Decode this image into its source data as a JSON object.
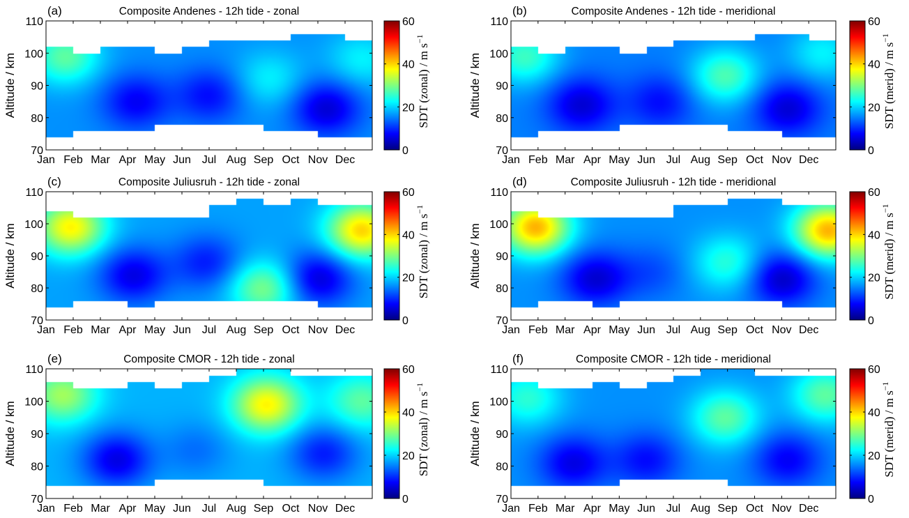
{
  "colorbar_range": [
    0,
    60
  ],
  "colorbar_ticks": [
    "0",
    "20",
    "40",
    "60"
  ],
  "colormap": "jet",
  "chart_data": [
    {
      "type": "heatmap",
      "panel": "(a)",
      "title": "Composite Andenes - 12h tide - zonal",
      "ylabel": "Altitude / km",
      "colorbar_label": "SDT (zonal) / m s",
      "colorbar_unit_exp": "−1",
      "xticks": [
        "Jan",
        "Feb",
        "Mar",
        "Apr",
        "May",
        "Jun",
        "Jul",
        "Aug",
        "Sep",
        "Oct",
        "Nov",
        "Dec"
      ],
      "yticks": [
        "70",
        "80",
        "90",
        "100",
        "110"
      ],
      "ylim": [
        70,
        110
      ],
      "zlim": [
        0,
        60
      ],
      "top_boundary_km": [
        102,
        100,
        102,
        102,
        100,
        102,
        104,
        104,
        104,
        106,
        106,
        104
      ],
      "bottom_boundary_km": [
        74,
        76,
        76,
        76,
        78,
        78,
        78,
        78,
        76,
        76,
        74,
        74
      ],
      "wind_field": {
        "base_ms": 16,
        "features": [
          {
            "month": 0.7,
            "altitude_km": 99,
            "value_ms": 28
          },
          {
            "month": 3.3,
            "altitude_km": 85,
            "value_ms": 7
          },
          {
            "month": 6.0,
            "altitude_km": 87,
            "value_ms": 8
          },
          {
            "month": 8.2,
            "altitude_km": 92,
            "value_ms": 22
          },
          {
            "month": 10.3,
            "altitude_km": 83,
            "value_ms": 5
          },
          {
            "month": 11.6,
            "altitude_km": 98,
            "value_ms": 22
          }
        ]
      }
    },
    {
      "type": "heatmap",
      "panel": "(b)",
      "title": "Composite Andenes - 12h tide - meridional",
      "ylabel": "Altitude / km",
      "colorbar_label": "SDT (merid) / m s",
      "colorbar_unit_exp": "−1",
      "xticks": [
        "Jan",
        "Feb",
        "Mar",
        "Apr",
        "May",
        "Jun",
        "Jul",
        "Aug",
        "Sep",
        "Oct",
        "Nov",
        "Dec"
      ],
      "yticks": [
        "70",
        "80",
        "90",
        "100",
        "110"
      ],
      "ylim": [
        70,
        110
      ],
      "zlim": [
        0,
        60
      ],
      "top_boundary_km": [
        102,
        100,
        102,
        102,
        100,
        102,
        104,
        104,
        104,
        106,
        106,
        104
      ],
      "bottom_boundary_km": [
        74,
        76,
        76,
        76,
        78,
        78,
        78,
        78,
        76,
        76,
        74,
        74
      ],
      "wind_field": {
        "base_ms": 15,
        "features": [
          {
            "month": 0.5,
            "altitude_km": 99,
            "value_ms": 26
          },
          {
            "month": 2.6,
            "altitude_km": 84,
            "value_ms": 5
          },
          {
            "month": 5.5,
            "altitude_km": 85,
            "value_ms": 8
          },
          {
            "month": 7.9,
            "altitude_km": 93,
            "value_ms": 27
          },
          {
            "month": 10.2,
            "altitude_km": 83,
            "value_ms": 5
          },
          {
            "month": 11.5,
            "altitude_km": 100,
            "value_ms": 22
          }
        ]
      }
    },
    {
      "type": "heatmap",
      "panel": "(c)",
      "title": "Composite Juliusruh - 12h tide - zonal",
      "ylabel": "Altitude / km",
      "colorbar_label": "SDT (zonal) / m s",
      "colorbar_unit_exp": "−1",
      "xticks": [
        "Jan",
        "Feb",
        "Mar",
        "Apr",
        "May",
        "Jun",
        "Jul",
        "Aug",
        "Sep",
        "Oct",
        "Nov",
        "Dec"
      ],
      "yticks": [
        "70",
        "80",
        "90",
        "100",
        "110"
      ],
      "ylim": [
        70,
        110
      ],
      "zlim": [
        0,
        60
      ],
      "top_boundary_km": [
        104,
        102,
        102,
        102,
        102,
        102,
        106,
        108,
        106,
        108,
        106,
        106
      ],
      "bottom_boundary_km": [
        74,
        76,
        76,
        74,
        76,
        76,
        76,
        76,
        76,
        76,
        74,
        74
      ],
      "wind_field": {
        "base_ms": 17,
        "features": [
          {
            "month": 0.9,
            "altitude_km": 99,
            "value_ms": 38
          },
          {
            "month": 3.2,
            "altitude_km": 84,
            "value_ms": 6
          },
          {
            "month": 5.9,
            "altitude_km": 88,
            "value_ms": 9
          },
          {
            "month": 8.0,
            "altitude_km": 80,
            "value_ms": 30
          },
          {
            "month": 10.0,
            "altitude_km": 83,
            "value_ms": 5
          },
          {
            "month": 11.6,
            "altitude_km": 98,
            "value_ms": 40
          }
        ]
      }
    },
    {
      "type": "heatmap",
      "panel": "(d)",
      "title": "Composite Juliusruh - 12h tide - meridional",
      "ylabel": "Altitude / km",
      "colorbar_label": "SDT (merid) / m s",
      "colorbar_unit_exp": "−1",
      "xticks": [
        "Jan",
        "Feb",
        "Mar",
        "Apr",
        "May",
        "Jun",
        "Jul",
        "Aug",
        "Sep",
        "Oct",
        "Nov",
        "Dec"
      ],
      "yticks": [
        "70",
        "80",
        "90",
        "100",
        "110"
      ],
      "ylim": [
        70,
        110
      ],
      "zlim": [
        0,
        60
      ],
      "top_boundary_km": [
        104,
        102,
        102,
        102,
        102,
        102,
        106,
        106,
        108,
        108,
        106,
        106
      ],
      "bottom_boundary_km": [
        74,
        76,
        76,
        74,
        76,
        76,
        76,
        76,
        76,
        76,
        74,
        74
      ],
      "wind_field": {
        "base_ms": 16,
        "features": [
          {
            "month": 0.9,
            "altitude_km": 99,
            "value_ms": 42
          },
          {
            "month": 3.1,
            "altitude_km": 83,
            "value_ms": 5
          },
          {
            "month": 5.2,
            "altitude_km": 85,
            "value_ms": 12
          },
          {
            "month": 8.0,
            "altitude_km": 88,
            "value_ms": 25
          },
          {
            "month": 10.0,
            "altitude_km": 83,
            "value_ms": 4
          },
          {
            "month": 11.7,
            "altitude_km": 98,
            "value_ms": 42
          }
        ]
      }
    },
    {
      "type": "heatmap",
      "panel": "(e)",
      "title": "Composite CMOR - 12h tide - zonal",
      "ylabel": "Altitude / km",
      "colorbar_label": "SDT (zonal) / m s",
      "colorbar_unit_exp": "−1",
      "xticks": [
        "Jan",
        "Feb",
        "Mar",
        "Apr",
        "May",
        "Jun",
        "Jul",
        "Aug",
        "Sep",
        "Oct",
        "Nov",
        "Dec"
      ],
      "yticks": [
        "70",
        "80",
        "90",
        "100",
        "110"
      ],
      "ylim": [
        70,
        110
      ],
      "zlim": [
        0,
        60
      ],
      "top_boundary_km": [
        106,
        104,
        104,
        106,
        104,
        106,
        108,
        110,
        110,
        108,
        108,
        108
      ],
      "bottom_boundary_km": [
        74,
        74,
        74,
        74,
        76,
        76,
        76,
        76,
        74,
        74,
        74,
        74
      ],
      "wind_field": {
        "base_ms": 18,
        "features": [
          {
            "month": 0.6,
            "altitude_km": 102,
            "value_ms": 32
          },
          {
            "month": 2.6,
            "altitude_km": 82,
            "value_ms": 6
          },
          {
            "month": 5.5,
            "altitude_km": 85,
            "value_ms": 14
          },
          {
            "month": 8.1,
            "altitude_km": 99,
            "value_ms": 38
          },
          {
            "month": 10.2,
            "altitude_km": 84,
            "value_ms": 9
          },
          {
            "month": 11.6,
            "altitude_km": 100,
            "value_ms": 28
          }
        ]
      }
    },
    {
      "type": "heatmap",
      "panel": "(f)",
      "title": "Composite CMOR - 12h tide - meridional",
      "ylabel": "Altitude / km",
      "colorbar_label": "SDT (merid) / m s",
      "colorbar_unit_exp": "−1",
      "xticks": [
        "Jan",
        "Feb",
        "Mar",
        "Apr",
        "May",
        "Jun",
        "Jul",
        "Aug",
        "Sep",
        "Oct",
        "Nov",
        "Dec"
      ],
      "yticks": [
        "70",
        "80",
        "90",
        "100",
        "110"
      ],
      "ylim": [
        70,
        110
      ],
      "zlim": [
        0,
        60
      ],
      "top_boundary_km": [
        106,
        104,
        104,
        106,
        104,
        106,
        108,
        110,
        110,
        108,
        108,
        108
      ],
      "bottom_boundary_km": [
        74,
        74,
        74,
        74,
        76,
        76,
        76,
        76,
        74,
        74,
        74,
        74
      ],
      "wind_field": {
        "base_ms": 16,
        "features": [
          {
            "month": 0.6,
            "altitude_km": 101,
            "value_ms": 25
          },
          {
            "month": 2.3,
            "altitude_km": 81,
            "value_ms": 6
          },
          {
            "month": 5.0,
            "altitude_km": 82,
            "value_ms": 8
          },
          {
            "month": 7.9,
            "altitude_km": 95,
            "value_ms": 28
          },
          {
            "month": 10.2,
            "altitude_km": 82,
            "value_ms": 7
          },
          {
            "month": 11.6,
            "altitude_km": 102,
            "value_ms": 28
          }
        ]
      }
    }
  ]
}
